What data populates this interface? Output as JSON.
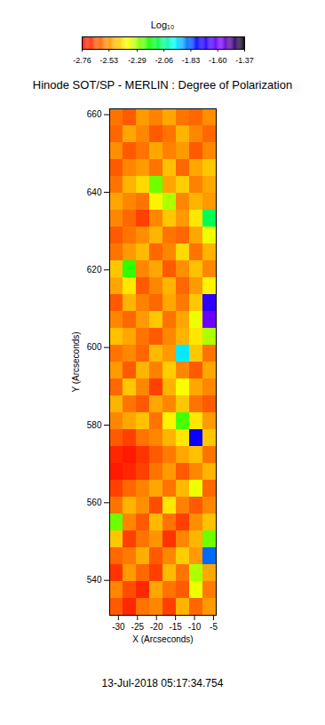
{
  "chart_data": {
    "type": "heatmap",
    "title": "Hinode SOT/SP - MERLIN : Degree of Polarization",
    "x_label": "X (Arcseconds)",
    "y_label": "Y (Arcseconds)",
    "caption": "13-Jul-2018 05:17:34.754",
    "xlim": [
      -32.3,
      -4.3
    ],
    "ylim": [
      531,
      661.5
    ],
    "xticks": [
      -30,
      -25,
      -20,
      -15,
      -10,
      -5
    ],
    "yticks": [
      540,
      560,
      580,
      600,
      620,
      640,
      660
    ],
    "x_edges": [
      -32.3,
      -28.8,
      -25.3,
      -21.8,
      -18.3,
      -14.8,
      -11.3,
      -7.8,
      -4.3
    ],
    "y_edges": [
      531,
      535.35,
      539.7,
      544.05,
      548.4,
      552.75,
      557.1,
      561.45,
      565.8,
      570.15,
      574.5,
      578.85,
      583.2,
      587.55,
      591.9,
      596.25,
      600.6,
      604.95,
      609.3,
      613.65,
      618,
      622.35,
      626.7,
      631.05,
      635.4,
      639.75,
      644.1,
      648.45,
      652.8,
      657.15,
      661.5
    ],
    "cells": [
      [
        -2.62,
        -2.7,
        -2.58,
        -2.55,
        -2.66,
        -2.48,
        -2.6,
        -2.52
      ],
      [
        -2.55,
        -2.64,
        -2.7,
        -2.5,
        -2.58,
        -2.62,
        -2.35,
        -2.57
      ],
      [
        -2.68,
        -2.52,
        -2.6,
        -2.66,
        -2.47,
        -2.58,
        -2.3,
        -2.5
      ],
      [
        -2.6,
        -2.57,
        -2.49,
        -2.62,
        -2.55,
        -2.44,
        -2.52,
        -1.85
      ],
      [
        -2.45,
        -2.66,
        -2.58,
        -2.53,
        -2.68,
        -2.55,
        -2.48,
        -2.25
      ],
      [
        -2.25,
        -2.55,
        -2.62,
        -2.47,
        -2.58,
        -2.66,
        -2.54,
        -2.46
      ],
      [
        -2.58,
        -2.48,
        -2.54,
        -2.64,
        -2.4,
        -2.56,
        -2.62,
        -2.55
      ],
      [
        -2.66,
        -2.6,
        -2.56,
        -2.5,
        -2.58,
        -2.47,
        -2.35,
        -2.6
      ],
      [
        -2.72,
        -2.7,
        -2.66,
        -2.58,
        -2.52,
        -2.62,
        -2.55,
        -2.48
      ],
      [
        -2.7,
        -2.72,
        -2.68,
        -2.62,
        -2.57,
        -2.5,
        -2.46,
        -2.58
      ],
      [
        -2.62,
        -2.66,
        -2.58,
        -2.55,
        -2.48,
        -2.4,
        -1.75,
        -2.45
      ],
      [
        -2.55,
        -2.5,
        -2.46,
        -2.58,
        -2.38,
        -2.22,
        -2.4,
        -2.52
      ],
      [
        -2.48,
        -2.58,
        -2.62,
        -2.5,
        -2.55,
        -2.45,
        -2.58,
        -2.62
      ],
      [
        -2.6,
        -2.45,
        -2.55,
        -2.66,
        -2.48,
        -2.36,
        -2.5,
        -2.55
      ],
      [
        -2.52,
        -2.62,
        -2.48,
        -2.56,
        -2.44,
        -2.55,
        -2.62,
        -2.5
      ],
      [
        -2.58,
        -2.55,
        -2.6,
        -2.47,
        -2.52,
        -1.95,
        -2.45,
        -2.58
      ],
      [
        -2.46,
        -2.5,
        -2.58,
        -2.62,
        -2.55,
        -2.48,
        -2.4,
        -2.3
      ],
      [
        -2.55,
        -2.6,
        -2.52,
        -2.45,
        -2.58,
        -2.5,
        -2.35,
        -1.6
      ],
      [
        -2.62,
        -2.48,
        -2.56,
        -2.6,
        -2.5,
        -2.57,
        -2.45,
        -1.7
      ],
      [
        -2.5,
        -2.4,
        -2.62,
        -2.55,
        -2.48,
        -2.6,
        -2.52,
        -2.38
      ],
      [
        -2.45,
        -2.2,
        -2.55,
        -2.5,
        -2.62,
        -2.54,
        -2.46,
        -2.55
      ],
      [
        -2.58,
        -2.52,
        -2.47,
        -2.6,
        -2.55,
        -2.42,
        -2.58,
        -2.48
      ],
      [
        -2.62,
        -2.58,
        -2.54,
        -2.48,
        -2.58,
        -2.6,
        -2.5,
        -2.35
      ],
      [
        -2.55,
        -2.6,
        -2.66,
        -2.55,
        -2.45,
        -2.52,
        -2.4,
        -2.1
      ],
      [
        -2.5,
        -2.55,
        -2.58,
        -2.38,
        -2.3,
        -2.55,
        -2.48,
        -2.52
      ],
      [
        -2.58,
        -2.48,
        -2.42,
        -2.25,
        -2.5,
        -2.44,
        -2.56,
        -2.5
      ],
      [
        -2.62,
        -2.55,
        -2.52,
        -2.58,
        -2.46,
        -2.6,
        -2.5,
        -2.45
      ],
      [
        -2.54,
        -2.62,
        -2.58,
        -2.5,
        -2.56,
        -2.52,
        -2.62,
        -2.55
      ],
      [
        -2.6,
        -2.5,
        -2.55,
        -2.62,
        -2.58,
        -2.48,
        -2.55,
        -2.6
      ],
      [
        -2.58,
        -2.62,
        -2.52,
        -2.56,
        -2.5,
        -2.58,
        -2.6,
        -2.54
      ]
    ],
    "colorbar": {
      "label": "Log₁₀",
      "range": [
        -2.76,
        -1.37
      ],
      "ticks": [
        -2.76,
        -2.53,
        -2.29,
        -2.06,
        -1.83,
        {
          "value": -1.6,
          "label": "-1.60"
        },
        -1.37
      ]
    }
  }
}
